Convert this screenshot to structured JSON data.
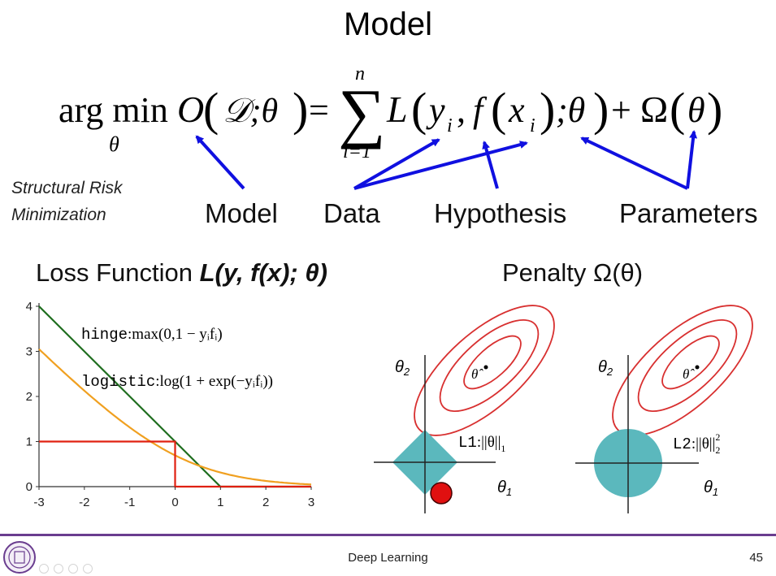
{
  "slide": {
    "title": "Model",
    "footer_course": "Deep Learning",
    "page_number": "45"
  },
  "equation": {
    "argmin": "arg min",
    "sub_theta": "θ",
    "lhs_O": "O",
    "lhs_args": "𝒟;θ",
    "equals": "=",
    "sum_top": "n",
    "sum_bottom": "i=1",
    "L": "L",
    "y": "y",
    "f": "f",
    "x": "x",
    "i": "i",
    "theta_after": ";θ",
    "plus": "+",
    "omega": "Ω",
    "theta": "θ"
  },
  "annotations": {
    "structural_risk_line1": "Structural Risk",
    "structural_risk_line2": "Minimization",
    "model": "Model",
    "data": "Data",
    "hypothesis": "Hypothesis",
    "parameters": "Parameters"
  },
  "loss_section": {
    "heading_prefix": "Loss Function ",
    "heading_math": "L(y, f(x); θ)",
    "hinge_name": "hinge",
    "hinge_expr": ":max(0,1 − yᵢfᵢ)",
    "logistic_name": "logistic",
    "logistic_expr": ":log(1 + exp(−yᵢfᵢ))"
  },
  "penalty_section": {
    "heading_prefix": "Penalty ",
    "heading_math": "Ω(θ)",
    "theta1": "θ",
    "theta2": "θ",
    "sub1": "1",
    "sub2": "2",
    "theta_hat": "θ̂",
    "l1_name": "L1",
    "l1_expr": ":||θ||",
    "l1_sub": "1",
    "l2_name": "L2",
    "l2_expr": ":||θ||",
    "l2_sub": "2",
    "l2_sup": "2"
  },
  "colors": {
    "arrow_blue": "#1010e0",
    "hinge_green": "#1f6e1f",
    "logistic_orange": "#f0a020",
    "zero_one_red": "#e02010",
    "contour_red": "#d83030",
    "region_teal": "#5bb8bd",
    "footer_purple": "#6a3d8f"
  },
  "chart_data": {
    "type": "line",
    "x": [
      -3,
      -2,
      -1,
      0,
      1,
      2,
      3
    ],
    "xlim": [
      -3,
      3
    ],
    "ylim": [
      0,
      4
    ],
    "xticks": [
      "-3",
      "-2",
      "-1",
      "0",
      "1",
      "2",
      "3"
    ],
    "yticks": [
      "0",
      "1",
      "2",
      "3",
      "4"
    ],
    "xlabel": "",
    "ylabel": "",
    "grid": false,
    "series": [
      {
        "name": "hinge",
        "color": "#1f6e1f",
        "x": [
          -3,
          -2,
          -1,
          0,
          1,
          2,
          3
        ],
        "values": [
          4,
          3,
          2,
          1,
          0,
          0,
          0
        ]
      },
      {
        "name": "logistic",
        "color": "#f0a020",
        "x": [
          -3,
          -2,
          -1,
          0,
          1,
          2,
          3
        ],
        "values": [
          3.05,
          2.13,
          1.31,
          0.69,
          0.31,
          0.13,
          0.05
        ]
      },
      {
        "name": "",
        "color": "#e02010",
        "x": [
          -3,
          0,
          0,
          3
        ],
        "values": [
          1,
          1,
          0,
          0
        ]
      }
    ]
  }
}
